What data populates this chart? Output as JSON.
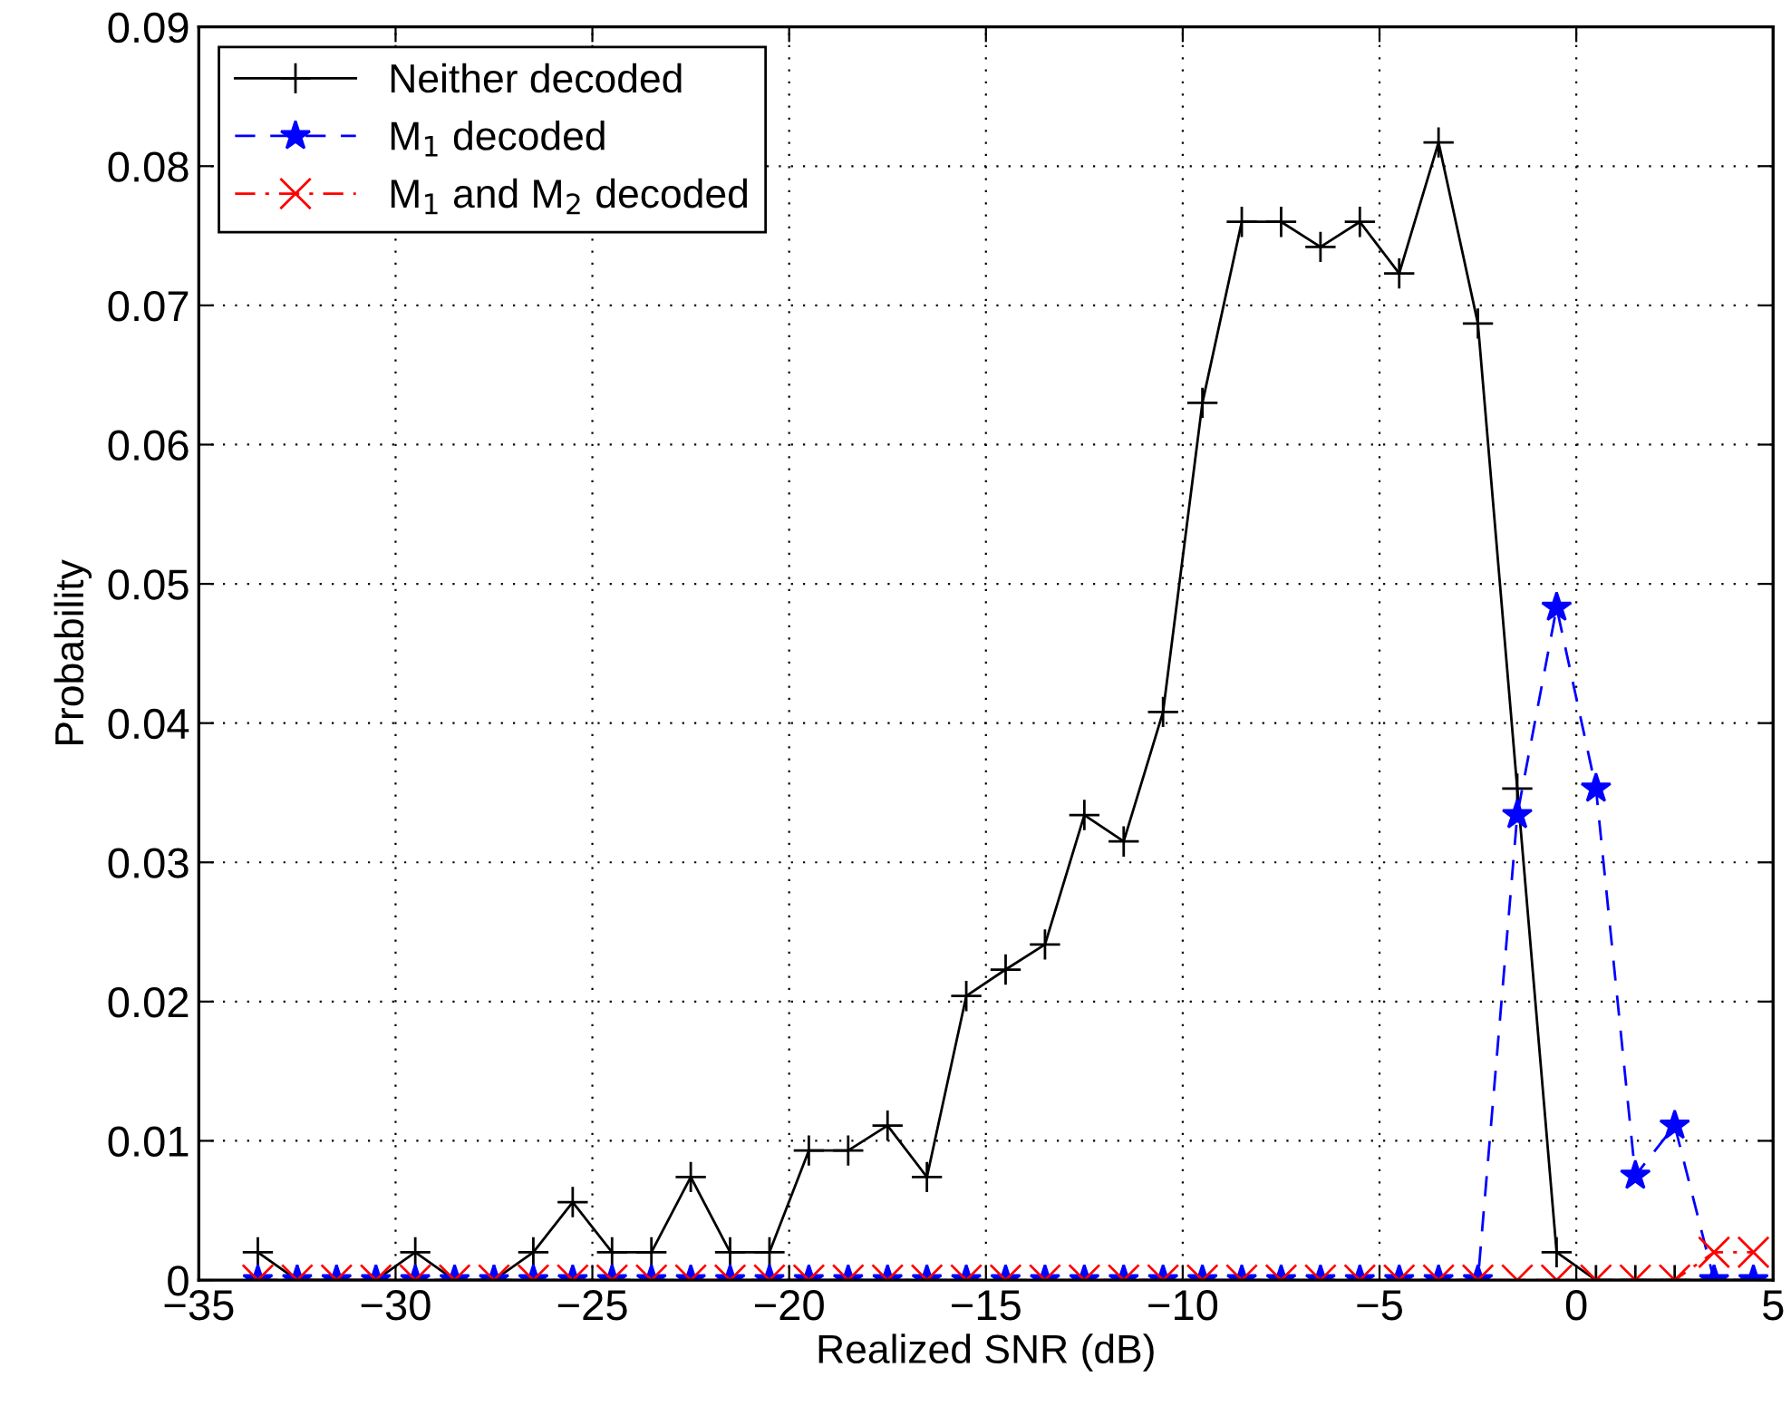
{
  "chart_data": {
    "type": "line",
    "xlabel": "Realized SNR (dB)",
    "ylabel": "Probability",
    "x": [
      -33.5,
      -32.5,
      -31.5,
      -30.5,
      -29.5,
      -28.5,
      -27.5,
      -26.5,
      -25.5,
      -24.5,
      -23.5,
      -22.5,
      -21.5,
      -20.5,
      -19.5,
      -18.5,
      -17.5,
      -16.5,
      -15.5,
      -14.5,
      -13.5,
      -12.5,
      -11.5,
      -10.5,
      -9.5,
      -8.5,
      -7.5,
      -6.5,
      -5.5,
      -4.5,
      -3.5,
      -2.5,
      -1.5,
      -0.5,
      0.5,
      1.5,
      2.5,
      3.5,
      4.5
    ],
    "series": [
      {
        "name": "Neither decoded",
        "color": "#000000",
        "marker": "cross",
        "line_style": "solid",
        "values": [
          0.002,
          0,
          0,
          0,
          0.002,
          0,
          0,
          0.002,
          0.0056,
          0.002,
          0.002,
          0.0074,
          0.002,
          0.002,
          0.0093,
          0.0093,
          0.0111,
          0.0074,
          0.0204,
          0.0223,
          0.0241,
          0.0334,
          0.0315,
          0.0408,
          0.063,
          0.076,
          0.076,
          0.0742,
          0.076,
          0.0723,
          0.0817,
          0.0687,
          0.0353,
          0.002,
          0,
          0,
          0,
          0,
          0
        ]
      },
      {
        "name": "M$_{1}$ decoded",
        "color": "#0000ff",
        "marker": "star",
        "line_style": "dashed",
        "values": [
          0,
          0,
          0,
          0,
          0,
          0,
          0,
          0,
          0,
          0,
          0,
          0,
          0,
          0,
          0,
          0,
          0,
          0,
          0,
          0,
          0,
          0,
          0,
          0,
          0,
          0,
          0,
          0,
          0,
          0,
          0,
          0,
          0.0334,
          0.0483,
          0.0353,
          0.0075,
          0.0111,
          0,
          0
        ]
      },
      {
        "name": "M$_{1}$ and M$_{2}$ decoded",
        "color": "#ff0000",
        "marker": "x",
        "line_style": "dashdot",
        "values": [
          0,
          0,
          0,
          0,
          0,
          0,
          0,
          0,
          0,
          0,
          0,
          0,
          0,
          0,
          0,
          0,
          0,
          0,
          0,
          0,
          0,
          0,
          0,
          0,
          0,
          0,
          0,
          0,
          0,
          0,
          0,
          0,
          0,
          0,
          0,
          0,
          0,
          0.002,
          0.002
        ]
      }
    ],
    "xlim": [
      -35,
      5
    ],
    "ylim": [
      0,
      0.09
    ],
    "xticks": [
      {
        "value": -35,
        "label": "−35"
      },
      {
        "value": -30,
        "label": "−30"
      },
      {
        "value": -25,
        "label": "−25"
      },
      {
        "value": -20,
        "label": "−20"
      },
      {
        "value": -15,
        "label": "−15"
      },
      {
        "value": -10,
        "label": "−10"
      },
      {
        "value": -5,
        "label": "−5"
      },
      0,
      5
    ],
    "yticks": [
      0,
      0.01,
      0.02,
      0.03,
      0.04,
      0.05,
      0.06,
      0.07,
      0.08,
      0.09
    ],
    "grid": true,
    "legend": "top left"
  }
}
